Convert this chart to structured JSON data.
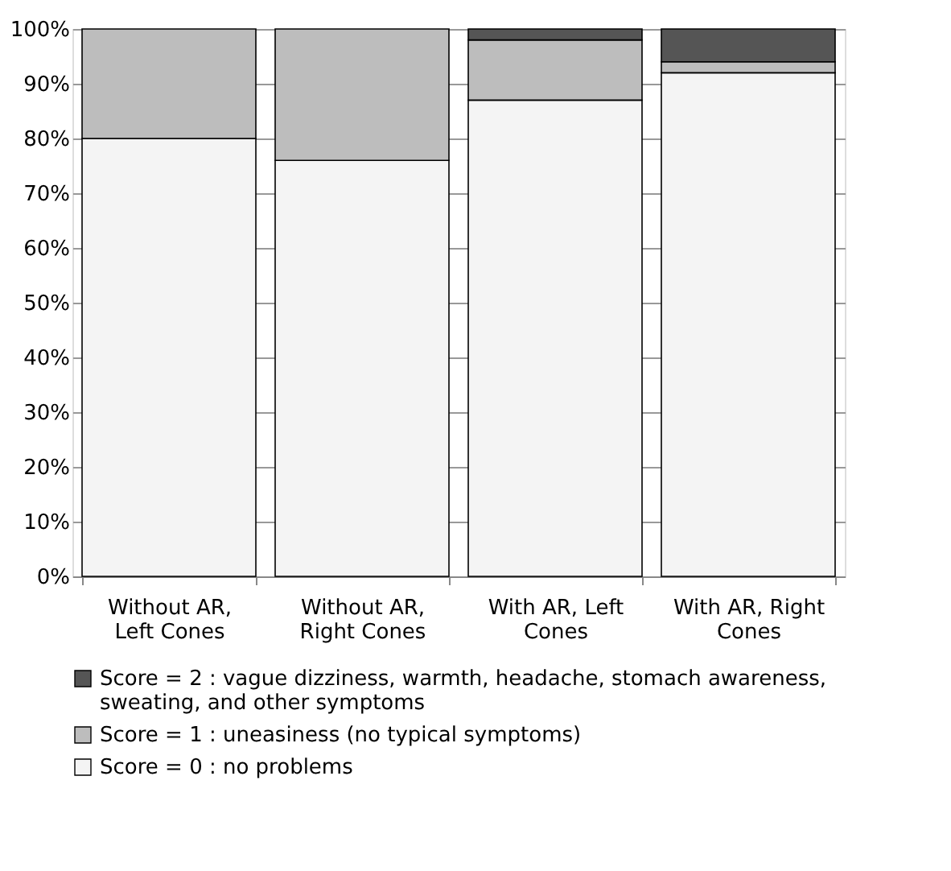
{
  "chart_data": {
    "type": "bar",
    "stacked": true,
    "categories": [
      "Without AR, Left Cones",
      "Without AR, Right Cones",
      "With AR, Left Cones",
      "With AR, Right Cones"
    ],
    "series": [
      {
        "name": "Score = 0 : no problems",
        "color": "#f4f4f4",
        "values": [
          80,
          76,
          87,
          92
        ]
      },
      {
        "name": "Score = 1 : uneasiness (no typical symptoms)",
        "color": "#bdbdbd",
        "values": [
          20,
          24,
          11,
          2
        ]
      },
      {
        "name": "Score = 2 : vague dizziness, warmth, headache, stomach awareness, sweating, and other symptoms",
        "color": "#555555",
        "values": [
          0,
          0,
          2,
          6
        ]
      }
    ],
    "ylim": [
      0,
      100
    ],
    "yticks": [
      {
        "value": 0,
        "label": "0%"
      },
      {
        "value": 10,
        "label": "10%"
      },
      {
        "value": 20,
        "label": "20%"
      },
      {
        "value": 30,
        "label": "30%"
      },
      {
        "value": 40,
        "label": "40%"
      },
      {
        "value": 50,
        "label": "50%"
      },
      {
        "value": 60,
        "label": "60%"
      },
      {
        "value": 70,
        "label": "70%"
      },
      {
        "value": 80,
        "label": "80%"
      },
      {
        "value": 90,
        "label": "90%"
      },
      {
        "value": 100,
        "label": "100%"
      }
    ],
    "grid": "y",
    "legend": "bottom"
  }
}
